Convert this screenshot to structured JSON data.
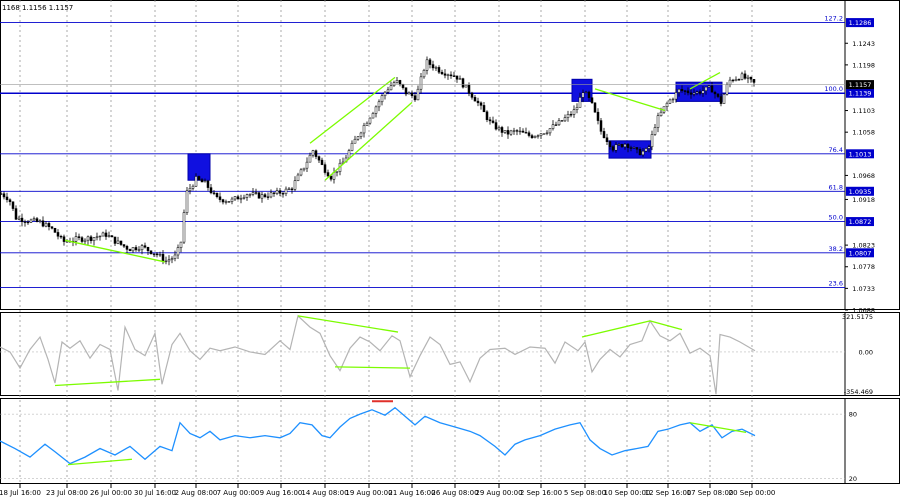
{
  "header": {
    "ohlc_text": "1168 1.1156 1.1157"
  },
  "chart_data": [
    {
      "type": "candlestick",
      "panel": "price",
      "ylim": [
        1.0688,
        1.1333
      ],
      "y_ticks": [
        "1.1243",
        "1.1198",
        "1.1103",
        "1.1058",
        "1.0968",
        "1.0918",
        "1.0823",
        "1.0778",
        "1.0733",
        "1.0688"
      ],
      "current_price": {
        "label": "1.1157",
        "value": 1.1157
      },
      "fib_levels": [
        {
          "pct": "127.2",
          "value": 1.1286,
          "label": "1.1286"
        },
        {
          "pct": "100.0",
          "value": 1.1139,
          "label": "1.1139"
        },
        {
          "pct": "76.4",
          "value": 1.1013,
          "label": "1.1013"
        },
        {
          "pct": "61.8",
          "value": 1.0935,
          "label": "1.0935"
        },
        {
          "pct": "50.0",
          "value": 1.0872,
          "label": "1.0872"
        },
        {
          "pct": "38.2",
          "value": 1.0807,
          "label": "1.0807"
        },
        {
          "pct": "23.6",
          "value": 1.0735,
          "label": ""
        }
      ],
      "price_path": [
        [
          0,
          1.093
        ],
        [
          8,
          1.092
        ],
        [
          15,
          1.088
        ],
        [
          25,
          1.0875
        ],
        [
          40,
          1.087
        ],
        [
          52,
          1.0855
        ],
        [
          62,
          1.083
        ],
        [
          75,
          1.0835
        ],
        [
          90,
          1.0838
        ],
        [
          105,
          1.0845
        ],
        [
          115,
          1.083
        ],
        [
          128,
          1.0815
        ],
        [
          140,
          1.082
        ],
        [
          155,
          1.0805
        ],
        [
          165,
          1.079
        ],
        [
          175,
          1.08
        ],
        [
          180,
          1.083
        ],
        [
          185,
          1.093
        ],
        [
          195,
          1.096
        ],
        [
          205,
          1.095
        ],
        [
          215,
          1.092
        ],
        [
          230,
          1.0915
        ],
        [
          245,
          1.093
        ],
        [
          260,
          1.0925
        ],
        [
          275,
          1.093
        ],
        [
          290,
          1.094
        ],
        [
          300,
          1.0975
        ],
        [
          312,
          1.102
        ],
        [
          322,
          1.0985
        ],
        [
          330,
          1.0965
        ],
        [
          342,
          1.0995
        ],
        [
          355,
          1.1045
        ],
        [
          370,
          1.1095
        ],
        [
          385,
          1.1145
        ],
        [
          395,
          1.1165
        ],
        [
          405,
          1.114
        ],
        [
          415,
          1.113
        ],
        [
          425,
          1.1205
        ],
        [
          440,
          1.1185
        ],
        [
          455,
          1.1175
        ],
        [
          465,
          1.115
        ],
        [
          475,
          1.1125
        ],
        [
          490,
          1.1075
        ],
        [
          505,
          1.1055
        ],
        [
          515,
          1.106
        ],
        [
          530,
          1.105
        ],
        [
          545,
          1.106
        ],
        [
          560,
          1.108
        ],
        [
          575,
          1.1105
        ],
        [
          582,
          1.1145
        ],
        [
          590,
          1.112
        ],
        [
          600,
          1.106
        ],
        [
          612,
          1.1025
        ],
        [
          625,
          1.1035
        ],
        [
          637,
          1.1015
        ],
        [
          647,
          1.102
        ],
        [
          655,
          1.108
        ],
        [
          665,
          1.1115
        ],
        [
          678,
          1.1145
        ],
        [
          695,
          1.114
        ],
        [
          710,
          1.115
        ],
        [
          720,
          1.112
        ],
        [
          728,
          1.1165
        ],
        [
          740,
          1.1175
        ],
        [
          755,
          1.1157
        ]
      ],
      "x_labels": [
        "18 Jul 16:00",
        "23 Jul 08:00",
        "26 Jul 00:00",
        "30 Jul 16:00",
        "2 Aug 08:00",
        "7 Aug 00:00",
        "9 Aug 16:00",
        "14 Aug 08:00",
        "19 Aug 00:00",
        "21 Aug 16:00",
        "26 Aug 08:00",
        "29 Aug 00:00",
        "2 Sep 16:00",
        "5 Sep 08:00",
        "10 Sep 00:00",
        "12 Sep 16:00",
        "17 Sep 08:00",
        "20 Sep 00:00"
      ],
      "annotation_boxes": [
        {
          "x_index": 23,
          "y_top": 1.1013,
          "y_bottom": 1.0958
        },
        {
          "x_index": 72,
          "y_top": 1.1168,
          "y_bottom": 1.1122
        },
        {
          "x_index": 80,
          "y_top": 1.104,
          "y_bottom": 1.1004
        },
        {
          "x_index": 87,
          "y_top": 1.1162,
          "y_bottom": 1.1122
        }
      ],
      "trend_lines": [
        {
          "from": [
            65,
            1.0833
          ],
          "to": [
            165,
            1.0788
          ]
        },
        {
          "from": [
            310,
            1.1035
          ],
          "to": [
            395,
            1.1172
          ]
        },
        {
          "from": [
            325,
            1.0958
          ],
          "to": [
            412,
            1.112
          ]
        },
        {
          "from": [
            595,
            1.1148
          ],
          "to": [
            665,
            1.1103
          ]
        },
        {
          "from": [
            690,
            1.1148
          ],
          "to": [
            720,
            1.1182
          ]
        }
      ]
    },
    {
      "type": "line",
      "panel": "indicator-1",
      "ylim": [
        -354.469,
        321.5175
      ],
      "y_ticks": [
        "321.5175",
        "0.00",
        "-354.469"
      ],
      "line_color": "#b4b4b4",
      "series_path": [
        [
          0,
          40
        ],
        [
          10,
          0
        ],
        [
          20,
          -130
        ],
        [
          30,
          20
        ],
        [
          40,
          120
        ],
        [
          48,
          -60
        ],
        [
          55,
          -250
        ],
        [
          62,
          80
        ],
        [
          70,
          30
        ],
        [
          80,
          90
        ],
        [
          90,
          -50
        ],
        [
          100,
          60
        ],
        [
          110,
          20
        ],
        [
          118,
          -310
        ],
        [
          125,
          200
        ],
        [
          135,
          20
        ],
        [
          145,
          -30
        ],
        [
          155,
          150
        ],
        [
          162,
          -260
        ],
        [
          172,
          60
        ],
        [
          180,
          150
        ],
        [
          190,
          10
        ],
        [
          200,
          -60
        ],
        [
          210,
          30
        ],
        [
          220,
          10
        ],
        [
          235,
          40
        ],
        [
          250,
          0
        ],
        [
          265,
          -20
        ],
        [
          280,
          90
        ],
        [
          290,
          20
        ],
        [
          298,
          290
        ],
        [
          310,
          200
        ],
        [
          320,
          150
        ],
        [
          330,
          -30
        ],
        [
          340,
          -150
        ],
        [
          350,
          30
        ],
        [
          360,
          120
        ],
        [
          370,
          80
        ],
        [
          380,
          10
        ],
        [
          392,
          130
        ],
        [
          400,
          90
        ],
        [
          410,
          -200
        ],
        [
          420,
          -30
        ],
        [
          430,
          120
        ],
        [
          440,
          60
        ],
        [
          450,
          -100
        ],
        [
          460,
          -80
        ],
        [
          470,
          -240
        ],
        [
          480,
          -50
        ],
        [
          490,
          20
        ],
        [
          505,
          30
        ],
        [
          515,
          -20
        ],
        [
          530,
          40
        ],
        [
          545,
          30
        ],
        [
          555,
          -90
        ],
        [
          565,
          80
        ],
        [
          578,
          10
        ],
        [
          585,
          80
        ],
        [
          592,
          -160
        ],
        [
          600,
          -60
        ],
        [
          610,
          20
        ],
        [
          620,
          -40
        ],
        [
          630,
          60
        ],
        [
          642,
          90
        ],
        [
          650,
          250
        ],
        [
          660,
          130
        ],
        [
          670,
          90
        ],
        [
          680,
          150
        ],
        [
          690,
          -10
        ],
        [
          700,
          30
        ],
        [
          710,
          -30
        ],
        [
          716,
          -340
        ],
        [
          720,
          140
        ],
        [
          730,
          120
        ],
        [
          740,
          80
        ],
        [
          755,
          10
        ]
      ],
      "trend_lines": [
        {
          "from": [
            55,
            -270
          ],
          "to": [
            160,
            -220
          ]
        },
        {
          "from": [
            298,
            290
          ],
          "to": [
            398,
            160
          ]
        },
        {
          "from": [
            335,
            -120
          ],
          "to": [
            410,
            -130
          ]
        },
        {
          "from": [
            582,
            120
          ],
          "to": [
            650,
            250
          ]
        },
        {
          "from": [
            650,
            250
          ],
          "to": [
            682,
            180
          ]
        }
      ]
    },
    {
      "type": "line",
      "panel": "indicator-2",
      "ylim": [
        15,
        95
      ],
      "y_ticks": [
        "80",
        "20"
      ],
      "line_color": "#1e90ff",
      "series_path": [
        [
          0,
          55
        ],
        [
          15,
          48
        ],
        [
          30,
          40
        ],
        [
          45,
          52
        ],
        [
          55,
          45
        ],
        [
          70,
          34
        ],
        [
          85,
          40
        ],
        [
          100,
          48
        ],
        [
          115,
          42
        ],
        [
          130,
          50
        ],
        [
          145,
          38
        ],
        [
          160,
          50
        ],
        [
          172,
          46
        ],
        [
          180,
          72
        ],
        [
          190,
          62
        ],
        [
          200,
          58
        ],
        [
          210,
          64
        ],
        [
          220,
          56
        ],
        [
          235,
          60
        ],
        [
          250,
          58
        ],
        [
          265,
          60
        ],
        [
          280,
          58
        ],
        [
          290,
          62
        ],
        [
          300,
          72
        ],
        [
          312,
          70
        ],
        [
          322,
          60
        ],
        [
          330,
          58
        ],
        [
          340,
          68
        ],
        [
          350,
          76
        ],
        [
          360,
          80
        ],
        [
          372,
          84
        ],
        [
          385,
          79
        ],
        [
          395,
          86
        ],
        [
          405,
          78
        ],
        [
          415,
          70
        ],
        [
          425,
          78
        ],
        [
          440,
          72
        ],
        [
          455,
          68
        ],
        [
          470,
          64
        ],
        [
          480,
          60
        ],
        [
          495,
          50
        ],
        [
          505,
          42
        ],
        [
          515,
          52
        ],
        [
          525,
          56
        ],
        [
          540,
          60
        ],
        [
          555,
          66
        ],
        [
          570,
          70
        ],
        [
          580,
          72
        ],
        [
          590,
          56
        ],
        [
          600,
          48
        ],
        [
          612,
          42
        ],
        [
          625,
          46
        ],
        [
          637,
          48
        ],
        [
          648,
          50
        ],
        [
          658,
          64
        ],
        [
          668,
          66
        ],
        [
          680,
          70
        ],
        [
          690,
          72
        ],
        [
          700,
          64
        ],
        [
          712,
          70
        ],
        [
          722,
          58
        ],
        [
          732,
          64
        ],
        [
          742,
          66
        ],
        [
          755,
          60
        ]
      ],
      "trend_lines": [
        {
          "from": [
            68,
            33
          ],
          "to": [
            132,
            38
          ]
        },
        {
          "from": [
            690,
            72
          ],
          "to": [
            746,
            63
          ]
        }
      ],
      "marker": {
        "from": 372,
        "to": 393,
        "value": 92,
        "color": "#e0302a"
      }
    }
  ]
}
